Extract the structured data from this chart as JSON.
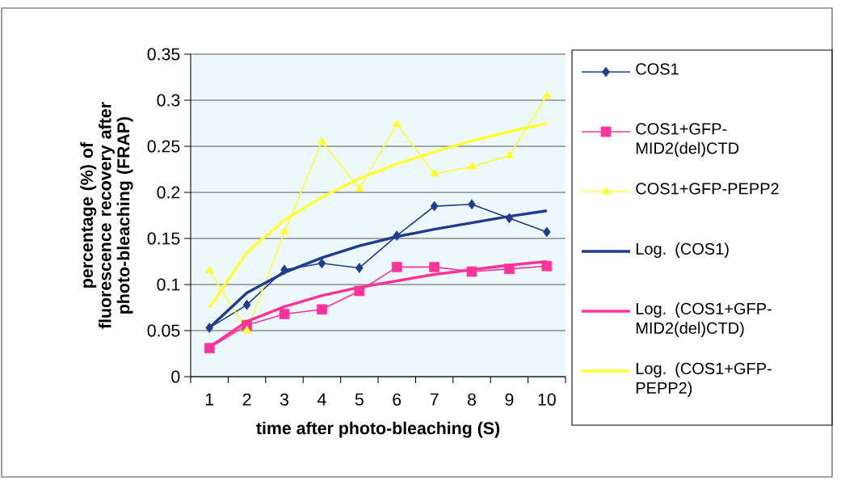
{
  "chart_data": {
    "type": "line",
    "xlabel": "time after photo-bleaching (S)",
    "ylabel": "percentage (%) of fluorescence recovery after photo-bleaching (FRAP)",
    "categories": [
      "1",
      "2",
      "3",
      "4",
      "5",
      "6",
      "7",
      "8",
      "9",
      "10"
    ],
    "ylim": [
      0,
      0.35
    ],
    "yticks": [
      0,
      0.05,
      0.1,
      0.15,
      0.2,
      0.25,
      0.3,
      0.35
    ],
    "grid": "y",
    "legend": "right",
    "line_style": "solid",
    "series": [
      {
        "name": "COS1",
        "color": "#1f3d8c",
        "marker": "diamond",
        "values": [
          0.053,
          0.078,
          0.116,
          0.123,
          0.118,
          0.153,
          0.185,
          0.187,
          0.172,
          0.157
        ]
      },
      {
        "name": "COS1+GFP-MID2(del)CTD",
        "color": "#ff3399",
        "marker": "square",
        "values": [
          0.031,
          0.056,
          0.068,
          0.073,
          0.093,
          0.119,
          0.119,
          0.114,
          0.117,
          0.12
        ]
      },
      {
        "name": "COS1+GFP-PEPP2",
        "color": "#ffff33",
        "marker": "triangle",
        "values": [
          0.115,
          0.05,
          0.157,
          0.255,
          0.204,
          0.274,
          0.22,
          0.228,
          0.24,
          0.305
        ]
      },
      {
        "name": "Log. (COS1)",
        "color": "#1f3d8c",
        "marker": "none",
        "values": [
          0.053,
          0.091,
          0.113,
          0.129,
          0.142,
          0.152,
          0.16,
          0.167,
          0.174,
          0.18
        ]
      },
      {
        "name": "Log. (COS1+GFP-MID2(del)CTD)",
        "color": "#ff3399",
        "marker": "none",
        "values": [
          0.032,
          0.06,
          0.076,
          0.088,
          0.097,
          0.104,
          0.111,
          0.116,
          0.121,
          0.125
        ]
      },
      {
        "name": "Log. (COS1+GFP-PEPP2)",
        "color": "#ffff33",
        "marker": "none",
        "values": [
          0.075,
          0.135,
          0.17,
          0.195,
          0.215,
          0.231,
          0.244,
          0.256,
          0.266,
          0.275
        ]
      }
    ]
  }
}
